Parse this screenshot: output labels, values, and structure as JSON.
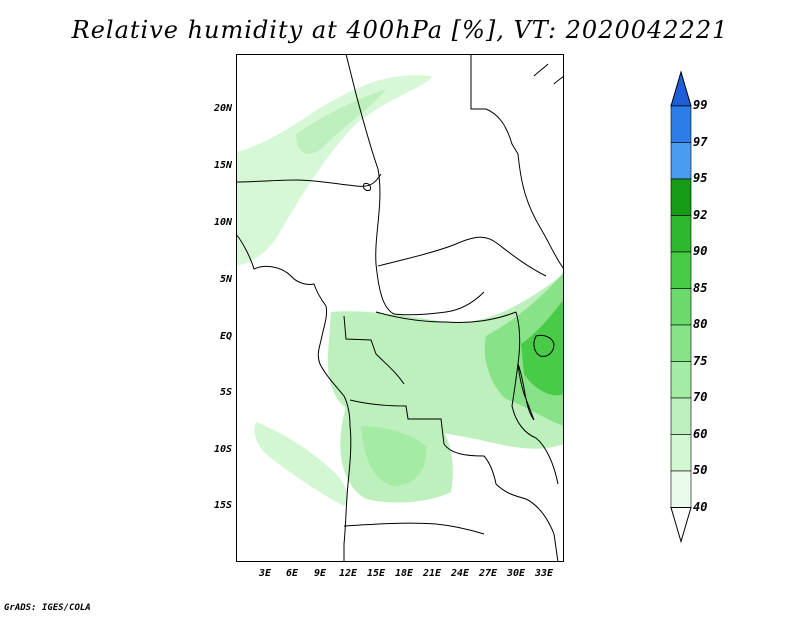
{
  "title": "Relative humidity at 400hPa [%], VT: 2020042221",
  "credit": "GrADS: IGES/COLA",
  "latitude_labels": [
    "20N",
    "15N",
    "10N",
    "5N",
    "EQ",
    "5S",
    "10S",
    "15S"
  ],
  "longitude_labels": [
    "3E",
    "6E",
    "9E",
    "12E",
    "15E",
    "18E",
    "21E",
    "24E",
    "27E",
    "30E",
    "33E"
  ],
  "colorbar": {
    "levels": [
      "40",
      "50",
      "60",
      "70",
      "75",
      "80",
      "85",
      "90",
      "92",
      "95",
      "97",
      "99"
    ],
    "colors": [
      "#ffffff",
      "#ebfbeb",
      "#d3f7d3",
      "#bdf0bd",
      "#a4eba4",
      "#88e388",
      "#6cd96c",
      "#48cc48",
      "#2eb82e",
      "#169b16",
      "#4a9cf0",
      "#2d7de8",
      "#1e5ed8"
    ]
  },
  "map_colors": {
    "light": "#d3f7d3",
    "mid": "#a4eba4",
    "strong": "#6cd96c",
    "deep": "#48cc48"
  }
}
